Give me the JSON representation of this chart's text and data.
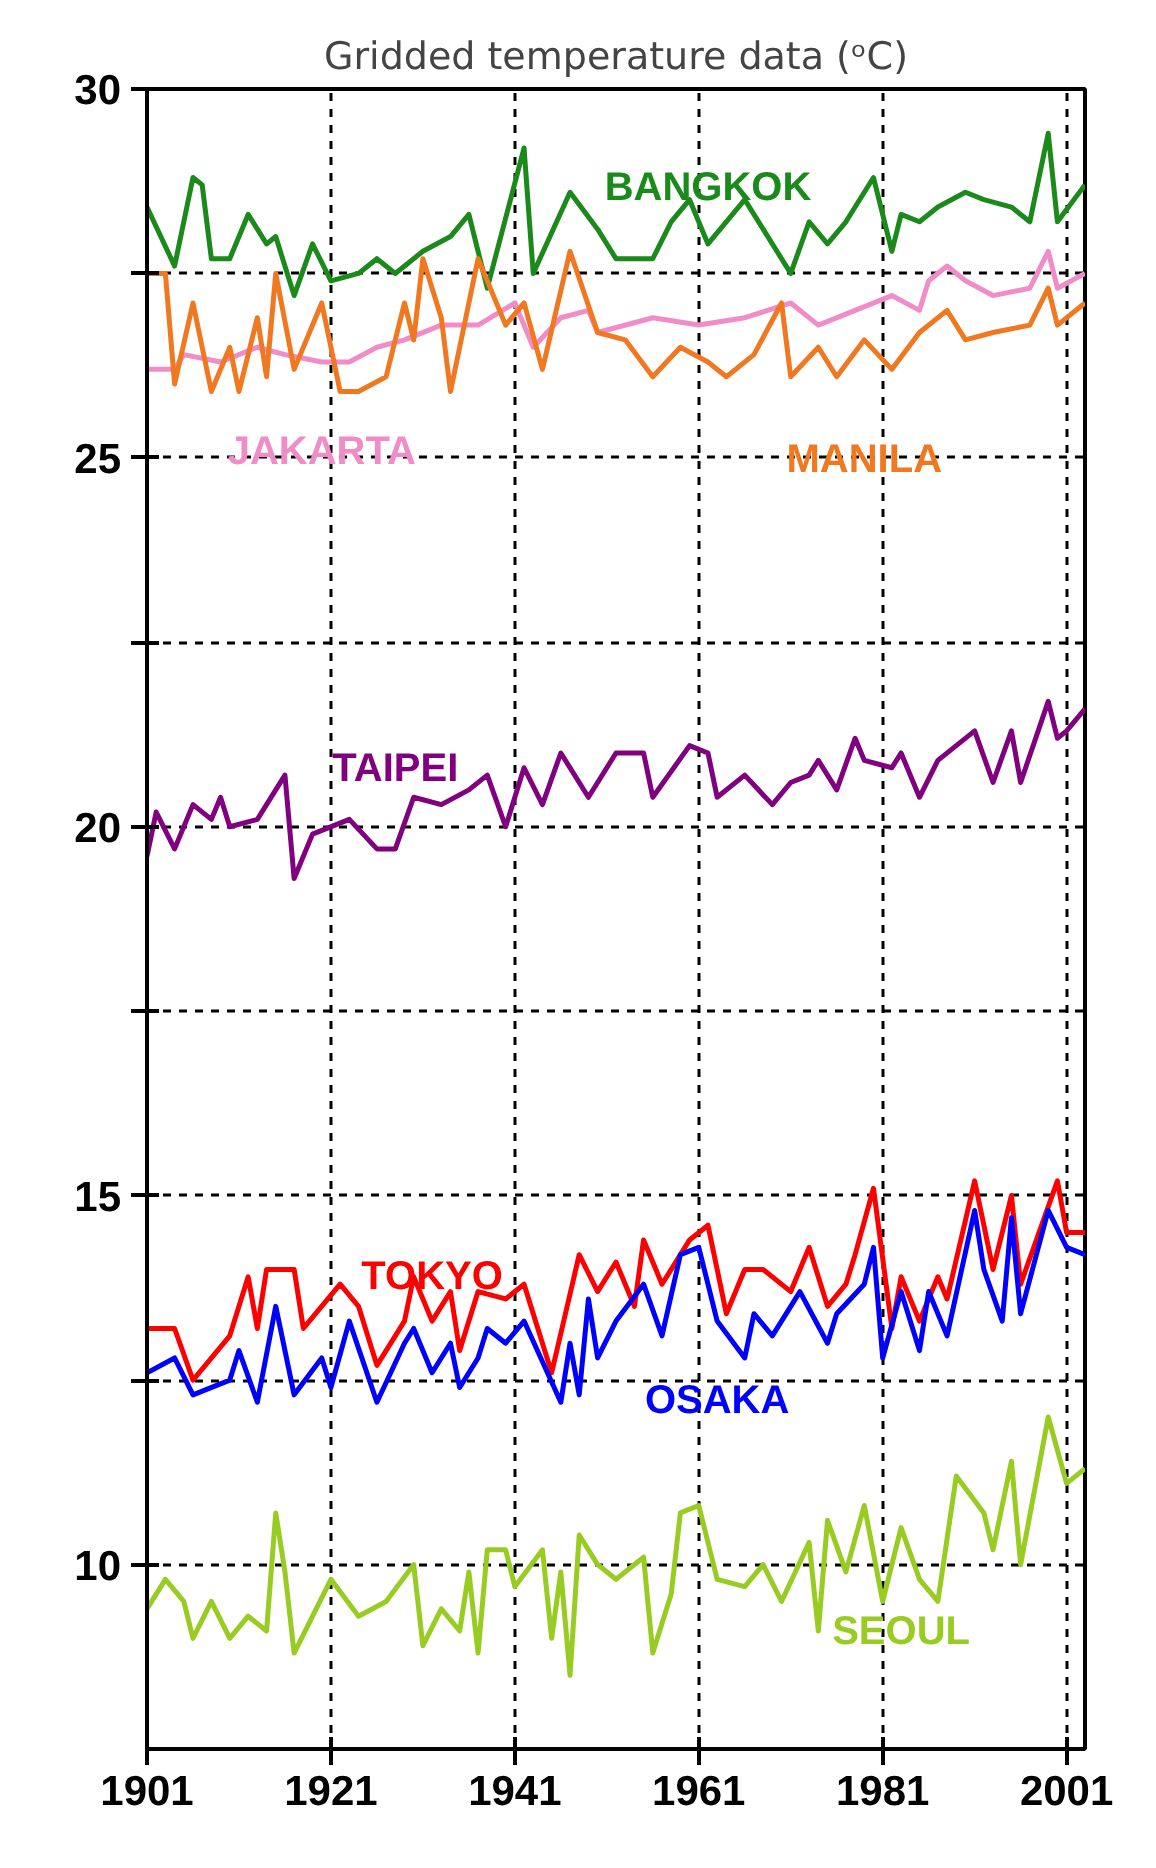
{
  "chart_data": {
    "type": "line",
    "title": "Gridded temperature data (ᵒC)",
    "xlim": [
      1901,
      2003
    ],
    "ylim": [
      7.5,
      30
    ],
    "xticks": [
      1901,
      1921,
      1941,
      1961,
      1981,
      2001
    ],
    "yticks": [
      10,
      {
        "value": 12.5,
        "label": null
      },
      15,
      {
        "value": 17.5,
        "label": null
      },
      20,
      {
        "value": 22.5,
        "label": null
      },
      25,
      {
        "value": 27.5,
        "label": null
      },
      30
    ],
    "grid": true,
    "line_style": "solid",
    "marker": "none",
    "series": [
      {
        "name": "BANGKOK",
        "color": "#1a8a1a",
        "x": [
          1901,
          1904,
          1906,
          1907,
          1908,
          1910,
          1912,
          1914,
          1915,
          1917,
          1919,
          1921,
          1924,
          1926,
          1928,
          1931,
          1934,
          1936,
          1938,
          1942,
          1943,
          1947,
          1950,
          1952,
          1956,
          1958,
          1960,
          1962,
          1966,
          1968,
          1971,
          1973,
          1975,
          1977,
          1980,
          1982,
          1983,
          1985,
          1987,
          1990,
          1992,
          1995,
          1997,
          1999,
          2000,
          2003
        ],
        "values": [
          28.4,
          27.6,
          28.8,
          28.7,
          27.7,
          27.7,
          28.3,
          27.9,
          28.0,
          27.2,
          27.9,
          27.4,
          27.5,
          27.7,
          27.5,
          27.8,
          28.0,
          28.3,
          27.3,
          29.2,
          27.5,
          28.6,
          28.1,
          27.7,
          27.7,
          28.2,
          28.5,
          27.9,
          28.5,
          28.1,
          27.5,
          28.2,
          27.9,
          28.2,
          28.8,
          27.8,
          28.3,
          28.2,
          28.4,
          28.6,
          28.5,
          28.4,
          28.2,
          29.4,
          28.2,
          28.7
        ]
      },
      {
        "name": "JAKARTA",
        "color": "#f08cc8",
        "x": [
          1901,
          1904,
          1905,
          1909,
          1913,
          1916,
          1920,
          1923,
          1926,
          1929,
          1933,
          1937,
          1941,
          1943,
          1946,
          1949,
          1950,
          1956,
          1961,
          1966,
          1971,
          1974,
          1978,
          1982,
          1985,
          1986,
          1988,
          1990,
          1993,
          1997,
          1999,
          2000,
          2003
        ],
        "values": [
          26.2,
          26.2,
          26.4,
          26.3,
          26.5,
          26.4,
          26.3,
          26.3,
          26.5,
          26.6,
          26.8,
          26.8,
          27.1,
          26.5,
          26.9,
          27.0,
          26.7,
          26.9,
          26.8,
          26.9,
          27.1,
          26.8,
          27.0,
          27.2,
          27.0,
          27.4,
          27.6,
          27.4,
          27.2,
          27.3,
          27.8,
          27.3,
          27.5
        ]
      },
      {
        "name": "MANILA",
        "color": "#f07820",
        "x": [
          1901,
          1903,
          1904,
          1906,
          1908,
          1910,
          1911,
          1913,
          1914,
          1915,
          1917,
          1920,
          1922,
          1924,
          1927,
          1929,
          1930,
          1931,
          1933,
          1934,
          1937,
          1940,
          1942,
          1944,
          1947,
          1950,
          1953,
          1956,
          1959,
          1962,
          1964,
          1967,
          1970,
          1971,
          1974,
          1976,
          1979,
          1982,
          1985,
          1988,
          1990,
          1993,
          1997,
          1999,
          2000,
          2003
        ],
        "values": [
          27.5,
          27.5,
          26.0,
          27.1,
          25.9,
          26.5,
          25.9,
          26.9,
          26.1,
          27.5,
          26.2,
          27.1,
          25.9,
          25.9,
          26.1,
          27.1,
          26.6,
          27.7,
          26.9,
          25.9,
          27.7,
          26.8,
          27.1,
          26.2,
          27.8,
          26.7,
          26.6,
          26.1,
          26.5,
          26.3,
          26.1,
          26.4,
          27.1,
          26.1,
          26.5,
          26.1,
          26.6,
          26.2,
          26.7,
          27.0,
          26.6,
          26.7,
          26.8,
          27.3,
          26.8,
          27.1
        ]
      },
      {
        "name": "TAIPEI",
        "color": "#800080",
        "x": [
          1901,
          1902,
          1904,
          1906,
          1908,
          1909,
          1910,
          1913,
          1916,
          1917,
          1919,
          1923,
          1926,
          1928,
          1930,
          1933,
          1936,
          1938,
          1940,
          1942,
          1944,
          1946,
          1949,
          1952,
          1955,
          1956,
          1960,
          1962,
          1963,
          1966,
          1969,
          1971,
          1973,
          1974,
          1976,
          1978,
          1979,
          1982,
          1983,
          1985,
          1987,
          1991,
          1993,
          1995,
          1996,
          1999,
          2000,
          2001,
          2003
        ],
        "values": [
          19.6,
          20.2,
          19.7,
          20.3,
          20.1,
          20.4,
          20.0,
          20.1,
          20.7,
          19.3,
          19.9,
          20.1,
          19.7,
          19.7,
          20.4,
          20.3,
          20.5,
          20.7,
          20.0,
          20.8,
          20.3,
          21.0,
          20.4,
          21.0,
          21.0,
          20.4,
          21.1,
          21.0,
          20.4,
          20.7,
          20.3,
          20.6,
          20.7,
          20.9,
          20.5,
          21.2,
          20.9,
          20.8,
          21.0,
          20.4,
          20.9,
          21.3,
          20.6,
          21.3,
          20.6,
          21.7,
          21.2,
          21.3,
          21.6
        ]
      },
      {
        "name": "TOKYO",
        "color": "#ff0000",
        "x": [
          1901,
          1904,
          1906,
          1910,
          1912,
          1913,
          1914,
          1917,
          1918,
          1922,
          1924,
          1926,
          1929,
          1930,
          1932,
          1934,
          1935,
          1937,
          1940,
          1942,
          1945,
          1948,
          1950,
          1952,
          1954,
          1955,
          1957,
          1960,
          1962,
          1964,
          1966,
          1968,
          1971,
          1973,
          1975,
          1977,
          1978,
          1980,
          1982,
          1983,
          1985,
          1987,
          1988,
          1991,
          1993,
          1995,
          1996,
          2000,
          2001,
          2003
        ],
        "values": [
          13.2,
          13.2,
          12.5,
          13.1,
          13.9,
          13.2,
          14.0,
          14.0,
          13.2,
          13.8,
          13.5,
          12.7,
          13.3,
          13.9,
          13.3,
          13.7,
          12.9,
          13.7,
          13.6,
          13.8,
          12.6,
          14.2,
          13.7,
          14.1,
          13.5,
          14.4,
          13.8,
          14.4,
          14.6,
          13.4,
          14.0,
          14.0,
          13.7,
          14.3,
          13.5,
          13.8,
          14.2,
          15.1,
          13.2,
          13.9,
          13.3,
          13.9,
          13.6,
          15.2,
          14.0,
          15.0,
          13.8,
          15.2,
          14.5,
          14.5
        ]
      },
      {
        "name": "OSAKA",
        "color": "#0000ff",
        "x": [
          1901,
          1904,
          1906,
          1910,
          1911,
          1913,
          1915,
          1917,
          1920,
          1921,
          1923,
          1926,
          1929,
          1930,
          1932,
          1934,
          1935,
          1937,
          1938,
          1940,
          1942,
          1946,
          1947,
          1948,
          1949,
          1950,
          1952,
          1955,
          1957,
          1959,
          1961,
          1963,
          1966,
          1967,
          1969,
          1972,
          1975,
          1976,
          1979,
          1980,
          1981,
          1983,
          1985,
          1986,
          1988,
          1991,
          1992,
          1994,
          1995,
          1996,
          1999,
          2001,
          2003
        ],
        "values": [
          12.6,
          12.8,
          12.3,
          12.5,
          12.9,
          12.2,
          13.5,
          12.3,
          12.8,
          12.4,
          13.3,
          12.2,
          13.0,
          13.2,
          12.6,
          13.0,
          12.4,
          12.8,
          13.2,
          13.0,
          13.3,
          12.2,
          13.0,
          12.3,
          13.6,
          12.8,
          13.3,
          13.8,
          13.1,
          14.2,
          14.3,
          13.3,
          12.8,
          13.4,
          13.1,
          13.7,
          13.0,
          13.4,
          13.8,
          14.3,
          12.8,
          13.7,
          12.9,
          13.7,
          13.1,
          14.8,
          14.0,
          13.3,
          14.7,
          13.4,
          14.8,
          14.3,
          14.2
        ]
      },
      {
        "name": "SEOUL",
        "color": "#99cc22",
        "x": [
          1901,
          1903,
          1905,
          1906,
          1908,
          1910,
          1912,
          1914,
          1915,
          1916,
          1917,
          1921,
          1924,
          1927,
          1930,
          1931,
          1933,
          1935,
          1936,
          1937,
          1938,
          1940,
          1941,
          1944,
          1945,
          1946,
          1947,
          1948,
          1950,
          1952,
          1955,
          1956,
          1958,
          1959,
          1961,
          1963,
          1966,
          1968,
          1970,
          1973,
          1974,
          1975,
          1977,
          1979,
          1981,
          1983,
          1985,
          1987,
          1989,
          1992,
          1993,
          1995,
          1996,
          1999,
          2001,
          2003
        ],
        "values": [
          9.4,
          9.8,
          9.5,
          9.0,
          9.5,
          9.0,
          9.3,
          9.1,
          10.7,
          9.9,
          8.8,
          9.8,
          9.3,
          9.5,
          10.0,
          8.9,
          9.4,
          9.1,
          9.9,
          8.8,
          10.2,
          10.2,
          9.7,
          10.2,
          9.0,
          9.9,
          8.5,
          10.4,
          10.0,
          9.8,
          10.1,
          8.8,
          9.6,
          10.7,
          10.8,
          9.8,
          9.7,
          10.0,
          9.5,
          10.3,
          9.1,
          10.6,
          9.9,
          10.8,
          9.5,
          10.5,
          9.8,
          9.5,
          11.2,
          10.7,
          10.2,
          11.4,
          10.0,
          12.0,
          11.1,
          11.3
        ]
      }
    ]
  }
}
